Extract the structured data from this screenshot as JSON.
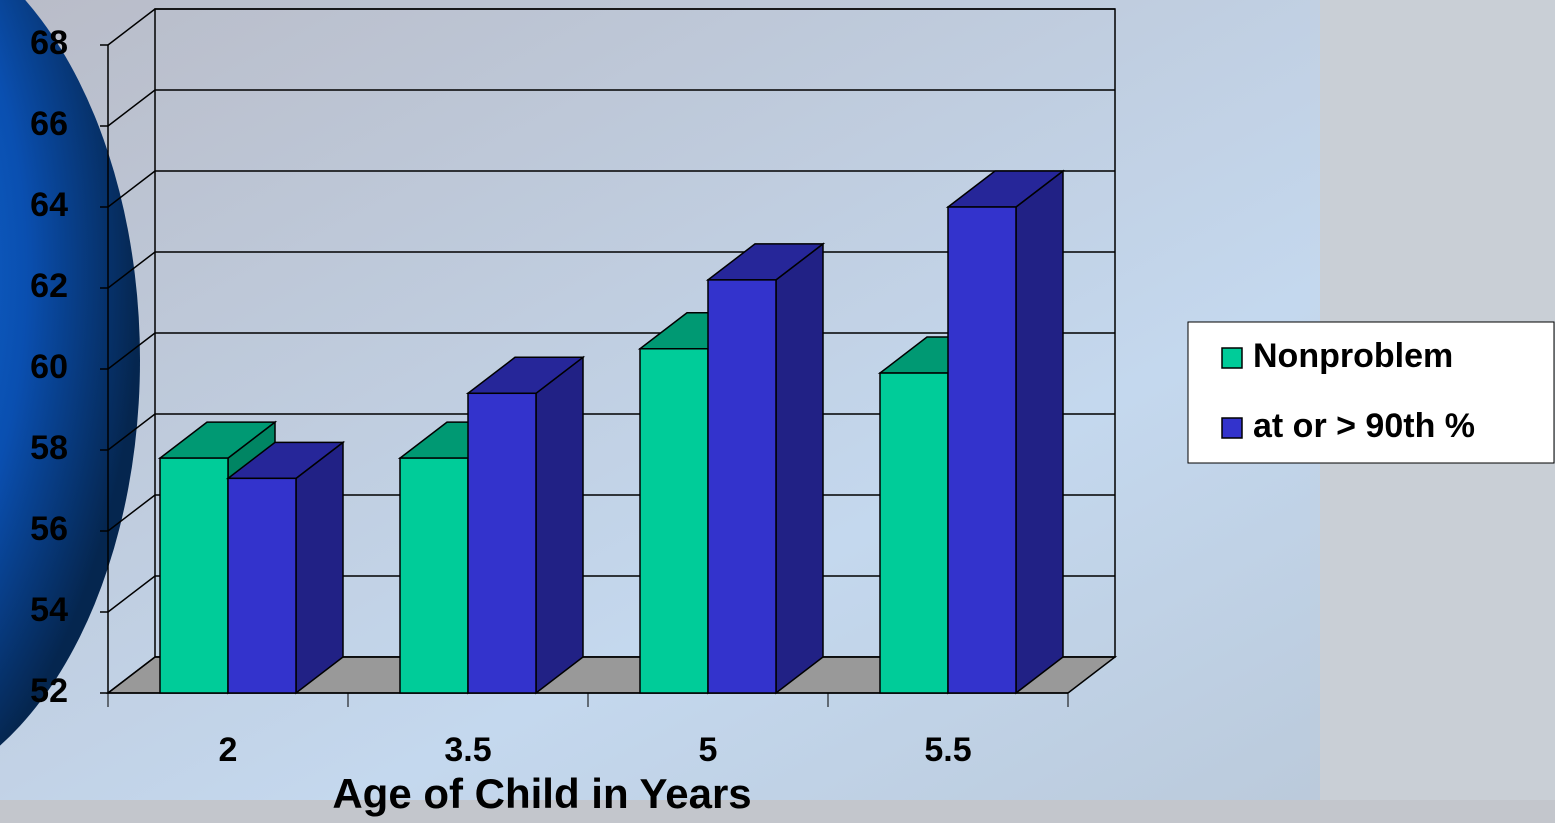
{
  "chart_data": {
    "type": "bar3d",
    "x_label": "Age of Child in Years",
    "categories": [
      "2",
      "3.5",
      "5",
      "5.5"
    ],
    "series": [
      {
        "name": "Nonproblem",
        "color": "#00cc99",
        "values": [
          57.8,
          57.8,
          60.5,
          59.9
        ]
      },
      {
        "name": "at or > 90th %",
        "color": "#3333cc",
        "values": [
          57.3,
          59.4,
          62.2,
          64.0
        ]
      }
    ],
    "ylim": [
      52,
      68
    ],
    "yticks": [
      52,
      54,
      56,
      58,
      60,
      62,
      64,
      66,
      68
    ],
    "grid": true,
    "legend": "right"
  }
}
